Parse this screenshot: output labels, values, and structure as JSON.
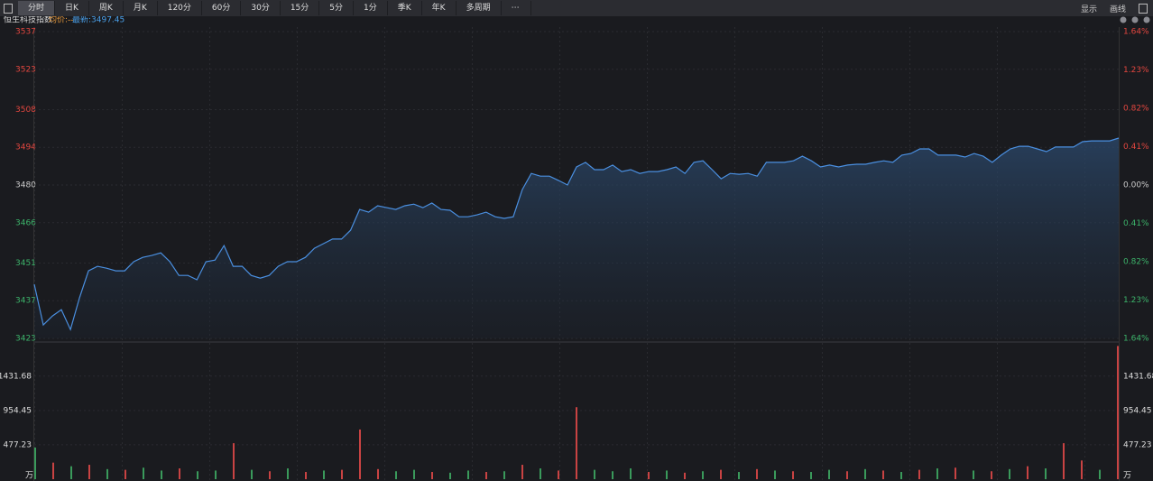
{
  "toolbar": {
    "tabs": [
      "分时",
      "日K",
      "周K",
      "月K",
      "120分",
      "60分",
      "30分",
      "15分",
      "5分",
      "1分",
      "季K",
      "年K",
      "多周期"
    ],
    "right": [
      "显示",
      "画线"
    ]
  },
  "chart_data": [
    {
      "type": "line",
      "title": "恒生科技指数",
      "legend": [
        "均价:--",
        "最新:3497.45"
      ],
      "color": "#4a8fe0",
      "values": [
        3443.1,
        3428.0,
        3431.3,
        3433.7,
        3426.3,
        3438.1,
        3448.1,
        3449.8,
        3449.1,
        3448.1,
        3448.1,
        3451.5,
        3453.1,
        3453.8,
        3454.8,
        3451.5,
        3446.4,
        3446.4,
        3444.8,
        3451.5,
        3452.1,
        3457.5,
        3449.8,
        3449.8,
        3446.4,
        3445.4,
        3446.4,
        3449.8,
        3451.5,
        3451.5,
        3453.1,
        3456.5,
        3458.2,
        3459.9,
        3459.9,
        3463.2,
        3470.9,
        3469.9,
        3472.3,
        3471.6,
        3470.9,
        3472.3,
        3472.9,
        3471.6,
        3473.3,
        3470.9,
        3470.6,
        3468.2,
        3468.2,
        3468.9,
        3469.9,
        3468.2,
        3467.6,
        3468.2,
        3478.3,
        3484.3,
        3483.3,
        3483.3,
        3481.7,
        3480.0,
        3486.7,
        3488.4,
        3485.7,
        3485.7,
        3487.4,
        3485.0,
        3485.7,
        3484.3,
        3485.0,
        3485.0,
        3485.7,
        3486.7,
        3484.3,
        3488.4,
        3489.0,
        3485.7,
        3482.3,
        3484.3,
        3484.0,
        3484.3,
        3483.3,
        3488.4,
        3488.4,
        3488.4,
        3489.0,
        3490.7,
        3489.0,
        3486.7,
        3487.4,
        3486.7,
        3487.4,
        3487.7,
        3487.7,
        3488.4,
        3489.0,
        3488.4,
        3491.1,
        3491.7,
        3493.4,
        3493.4,
        3491.1,
        3491.1,
        3491.1,
        3490.4,
        3491.7,
        3490.7,
        3488.4,
        3491.1,
        3493.4,
        3494.4,
        3494.4,
        3493.4,
        3492.4,
        3494.1,
        3494.1,
        3494.1,
        3496.1,
        3496.4,
        3496.4,
        3496.4,
        3497.45
      ],
      "ylim": [
        3423,
        3537
      ],
      "yticks": [
        3423,
        3437,
        3451,
        3466,
        3480,
        3494,
        3508,
        3523,
        3537
      ],
      "y2lim": [
        -1.64,
        1.64
      ],
      "y2ticks": [
        {
          "value": -1.64,
          "label": "1.64%"
        },
        {
          "value": -1.23,
          "label": "1.23%"
        },
        {
          "value": -0.82,
          "label": "0.82%"
        },
        {
          "value": -0.41,
          "label": "0.41%"
        },
        {
          "value": 0,
          "label": "0.00%"
        },
        {
          "value": 0.41,
          "label": "0.41%"
        },
        {
          "value": 0.82,
          "label": "0.82%"
        },
        {
          "value": 1.23,
          "label": "1.23%"
        },
        {
          "value": 1.64,
          "label": "1.64%"
        }
      ],
      "up_color": "#e2463f",
      "down_color": "#3cb36a",
      "zero_color": "#cccccc",
      "grid": true
    },
    {
      "type": "bar",
      "unit": "万",
      "values": [
        440,
        230,
        180,
        200,
        140,
        130,
        160,
        120,
        150,
        110,
        120,
        500,
        130,
        110,
        150,
        100,
        120,
        130,
        690,
        140,
        110,
        130,
        100,
        90,
        120,
        100,
        110,
        200,
        150,
        120,
        1000,
        130,
        110,
        150,
        100,
        120,
        90,
        110,
        130,
        100,
        140,
        120,
        110,
        100,
        130,
        110,
        140,
        120,
        100,
        130,
        150,
        160,
        120,
        110,
        140,
        180,
        150,
        500,
        260,
        130,
        1850
      ],
      "colors": [
        "#3a9a5b",
        "#c94343",
        "#3a9a5b",
        "#c94343",
        "#3a9a5b",
        "#c94343",
        "#3a9a5b",
        "#3a9a5b",
        "#c94343",
        "#3a9a5b",
        "#3a9a5b",
        "#c94343",
        "#3a9a5b",
        "#c94343",
        "#3a9a5b",
        "#c94343",
        "#3a9a5b",
        "#c94343",
        "#c94343",
        "#c94343",
        "#3a9a5b",
        "#3a9a5b",
        "#c94343",
        "#3a9a5b",
        "#3a9a5b",
        "#c94343",
        "#3a9a5b",
        "#c94343",
        "#3a9a5b",
        "#c94343",
        "#c94343",
        "#3a9a5b",
        "#3a9a5b",
        "#3a9a5b",
        "#c94343",
        "#3a9a5b",
        "#c94343",
        "#3a9a5b",
        "#c94343",
        "#3a9a5b",
        "#c94343",
        "#3a9a5b",
        "#c94343",
        "#3a9a5b",
        "#3a9a5b",
        "#c94343",
        "#3a9a5b",
        "#c94343",
        "#3a9a5b",
        "#c94343",
        "#3a9a5b",
        "#c94343",
        "#3a9a5b",
        "#c94343",
        "#3a9a5b",
        "#c94343",
        "#3a9a5b",
        "#c94343",
        "#c94343",
        "#3a9a5b",
        "#c94343"
      ],
      "ylim": [
        0,
        1880
      ],
      "yticks": [
        477.23,
        954.45,
        1431.68
      ],
      "grid": true
    }
  ]
}
